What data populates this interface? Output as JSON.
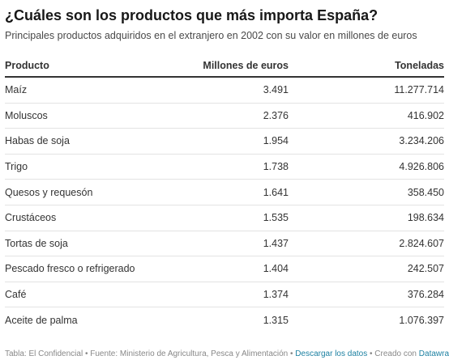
{
  "header": {
    "title": "¿Cuáles son los productos que más importa España?",
    "subtitle": "Principales productos adquiridos en el extranjero en 2002 con su valor en millones de euros"
  },
  "chart_data": {
    "type": "table",
    "columns": [
      "Producto",
      "Millones de euros",
      "Toneladas"
    ],
    "rows": [
      [
        "Maíz",
        "3.491",
        "11.277.714"
      ],
      [
        "Moluscos",
        "2.376",
        "416.902"
      ],
      [
        "Habas de soja",
        "1.954",
        "3.234.206"
      ],
      [
        "Trigo",
        "1.738",
        "4.926.806"
      ],
      [
        "Quesos y requesón",
        "1.641",
        "358.450"
      ],
      [
        "Crustáceos",
        "1.535",
        "198.634"
      ],
      [
        "Tortas de soja",
        "1.437",
        "2.824.607"
      ],
      [
        "Pescado fresco o refrigerado",
        "1.404",
        "242.507"
      ],
      [
        "Café",
        "1.374",
        "376.284"
      ],
      [
        "Aceite de palma",
        "1.315",
        "1.076.397"
      ]
    ]
  },
  "footer": {
    "source": "Tabla: El Confidencial • Fuente: Ministerio de Agricultura, Pesca y Alimentación • ",
    "download_label": "Descargar los datos",
    "created_text": " • Creado con ",
    "tool_label": "Datawrapper"
  },
  "colors": {
    "text": "#333333",
    "title": "#181818",
    "muted": "#888888",
    "link": "#1d81a2",
    "rule": "#e3e3e3"
  }
}
